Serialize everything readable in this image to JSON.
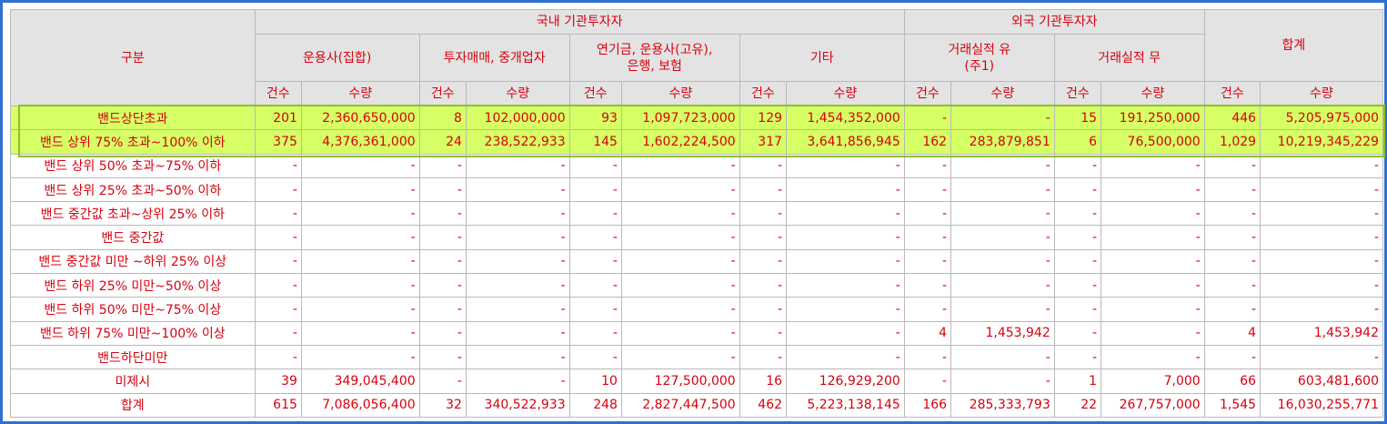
{
  "header": {
    "category": "구분",
    "domestic": "국내 기관투자자",
    "foreign": "외국 기관투자자",
    "total": "합계",
    "groups": [
      "운용사(집합)",
      "투자매매, 중개업자",
      "연기금, 운용사(고유),\n은행, 보험",
      "기타",
      "거래실적 유\n(주1)",
      "거래실적 무"
    ],
    "count": "건수",
    "quantity": "수량"
  },
  "rows": [
    {
      "label": "밴드상단초과",
      "cells": [
        "201",
        "2,360,650,000",
        "8",
        "102,000,000",
        "93",
        "1,097,723,000",
        "129",
        "1,454,352,000",
        "-",
        "-",
        "15",
        "191,250,000",
        "446",
        "5,205,975,000"
      ]
    },
    {
      "label": "밴드 상위 75% 초과~100% 이하",
      "cells": [
        "375",
        "4,376,361,000",
        "24",
        "238,522,933",
        "145",
        "1,602,224,500",
        "317",
        "3,641,856,945",
        "162",
        "283,879,851",
        "6",
        "76,500,000",
        "1,029",
        "10,219,345,229"
      ]
    },
    {
      "label": "밴드 상위 50% 초과~75% 이하",
      "cells": [
        "-",
        "-",
        "-",
        "-",
        "-",
        "-",
        "-",
        "-",
        "-",
        "-",
        "-",
        "-",
        "-",
        "-"
      ]
    },
    {
      "label": "밴드 상위 25% 초과~50% 이하",
      "cells": [
        "-",
        "-",
        "-",
        "-",
        "-",
        "-",
        "-",
        "-",
        "-",
        "-",
        "-",
        "-",
        "-",
        "-"
      ]
    },
    {
      "label": "밴드 중간값 초과~상위 25% 이하",
      "cells": [
        "-",
        "-",
        "-",
        "-",
        "-",
        "-",
        "-",
        "-",
        "-",
        "-",
        "-",
        "-",
        "-",
        "-"
      ]
    },
    {
      "label": "밴드 중간값",
      "cells": [
        "-",
        "-",
        "-",
        "-",
        "-",
        "-",
        "-",
        "-",
        "-",
        "-",
        "-",
        "-",
        "-",
        "-"
      ]
    },
    {
      "label": "밴드 중간값 미만 ~하위 25% 이상",
      "cells": [
        "-",
        "-",
        "-",
        "-",
        "-",
        "-",
        "-",
        "-",
        "-",
        "-",
        "-",
        "-",
        "-",
        "-"
      ]
    },
    {
      "label": "밴드 하위 25% 미만~50% 이상",
      "cells": [
        "-",
        "-",
        "-",
        "-",
        "-",
        "-",
        "-",
        "-",
        "-",
        "-",
        "-",
        "-",
        "-",
        "-"
      ]
    },
    {
      "label": "밴드 하위 50% 미만~75% 이상",
      "cells": [
        "-",
        "-",
        "-",
        "-",
        "-",
        "-",
        "-",
        "-",
        "-",
        "-",
        "-",
        "-",
        "-",
        "-"
      ]
    },
    {
      "label": "밴드 하위 75% 미만~100% 이상",
      "cells": [
        "-",
        "-",
        "-",
        "-",
        "-",
        "-",
        "-",
        "-",
        "4",
        "1,453,942",
        "-",
        "-",
        "4",
        "1,453,942"
      ]
    },
    {
      "label": "밴드하단미만",
      "cells": [
        "-",
        "-",
        "-",
        "-",
        "-",
        "-",
        "-",
        "-",
        "-",
        "-",
        "-",
        "-",
        "-",
        "-"
      ]
    },
    {
      "label": "미제시",
      "cells": [
        "39",
        "349,045,400",
        "-",
        "-",
        "10",
        "127,500,000",
        "16",
        "126,929,200",
        "-",
        "-",
        "1",
        "7,000",
        "66",
        "603,481,600"
      ]
    },
    {
      "label": "합계",
      "cells": [
        "615",
        "7,086,056,400",
        "32",
        "340,522,933",
        "248",
        "2,827,447,500",
        "462",
        "5,223,138,145",
        "166",
        "285,333,793",
        "22",
        "267,757,000",
        "1,545",
        "16,030,255,771"
      ]
    }
  ],
  "colors": {
    "text": "#d8000f",
    "header_bg": "#e3e3e3",
    "highlight": "#d5ff64",
    "frame": "#2f6fd1"
  }
}
